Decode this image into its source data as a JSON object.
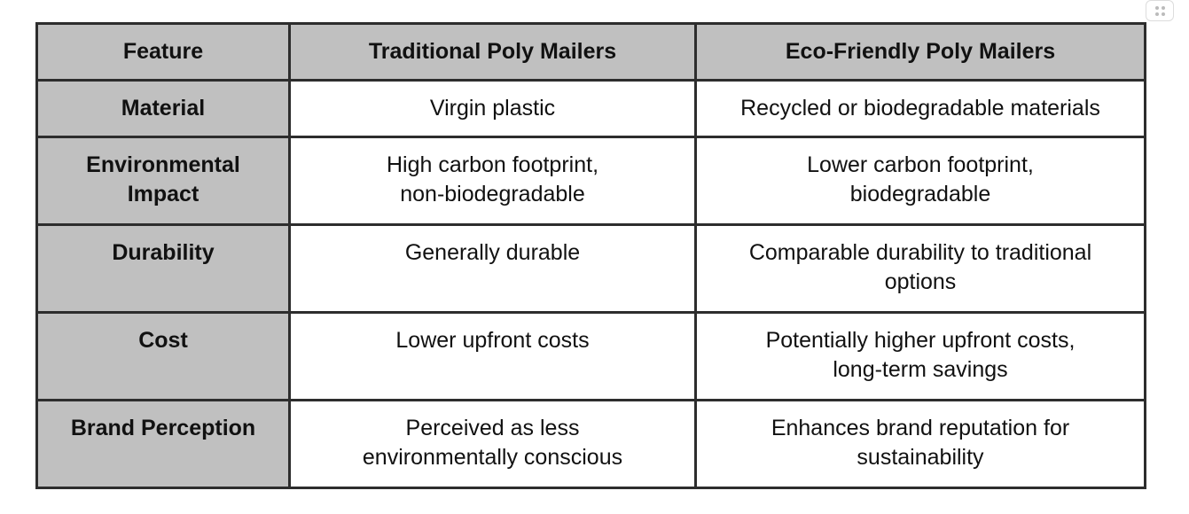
{
  "table": {
    "header": [
      "Feature",
      "Traditional Poly Mailers",
      "Eco-Friendly Poly Mailers"
    ],
    "rows": [
      [
        [
          "Material"
        ],
        [
          "Virgin plastic"
        ],
        [
          "Recycled or biodegradable materials"
        ]
      ],
      [
        [
          "Environmental",
          "Impact"
        ],
        [
          "High carbon footprint,",
          "non-biodegradable"
        ],
        [
          "Lower carbon footprint,",
          "biodegradable"
        ]
      ],
      [
        [
          "Durability"
        ],
        [
          "Generally durable"
        ],
        [
          "Comparable durability to traditional",
          "options"
        ]
      ],
      [
        [
          "Cost"
        ],
        [
          "Lower upfront costs"
        ],
        [
          "Potentially higher upfront costs,",
          "long-term savings"
        ]
      ],
      [
        [
          "Brand Perception"
        ],
        [
          "Perceived as less",
          "environmentally conscious"
        ],
        [
          "Enhances brand reputation for",
          "sustainability"
        ]
      ]
    ]
  }
}
